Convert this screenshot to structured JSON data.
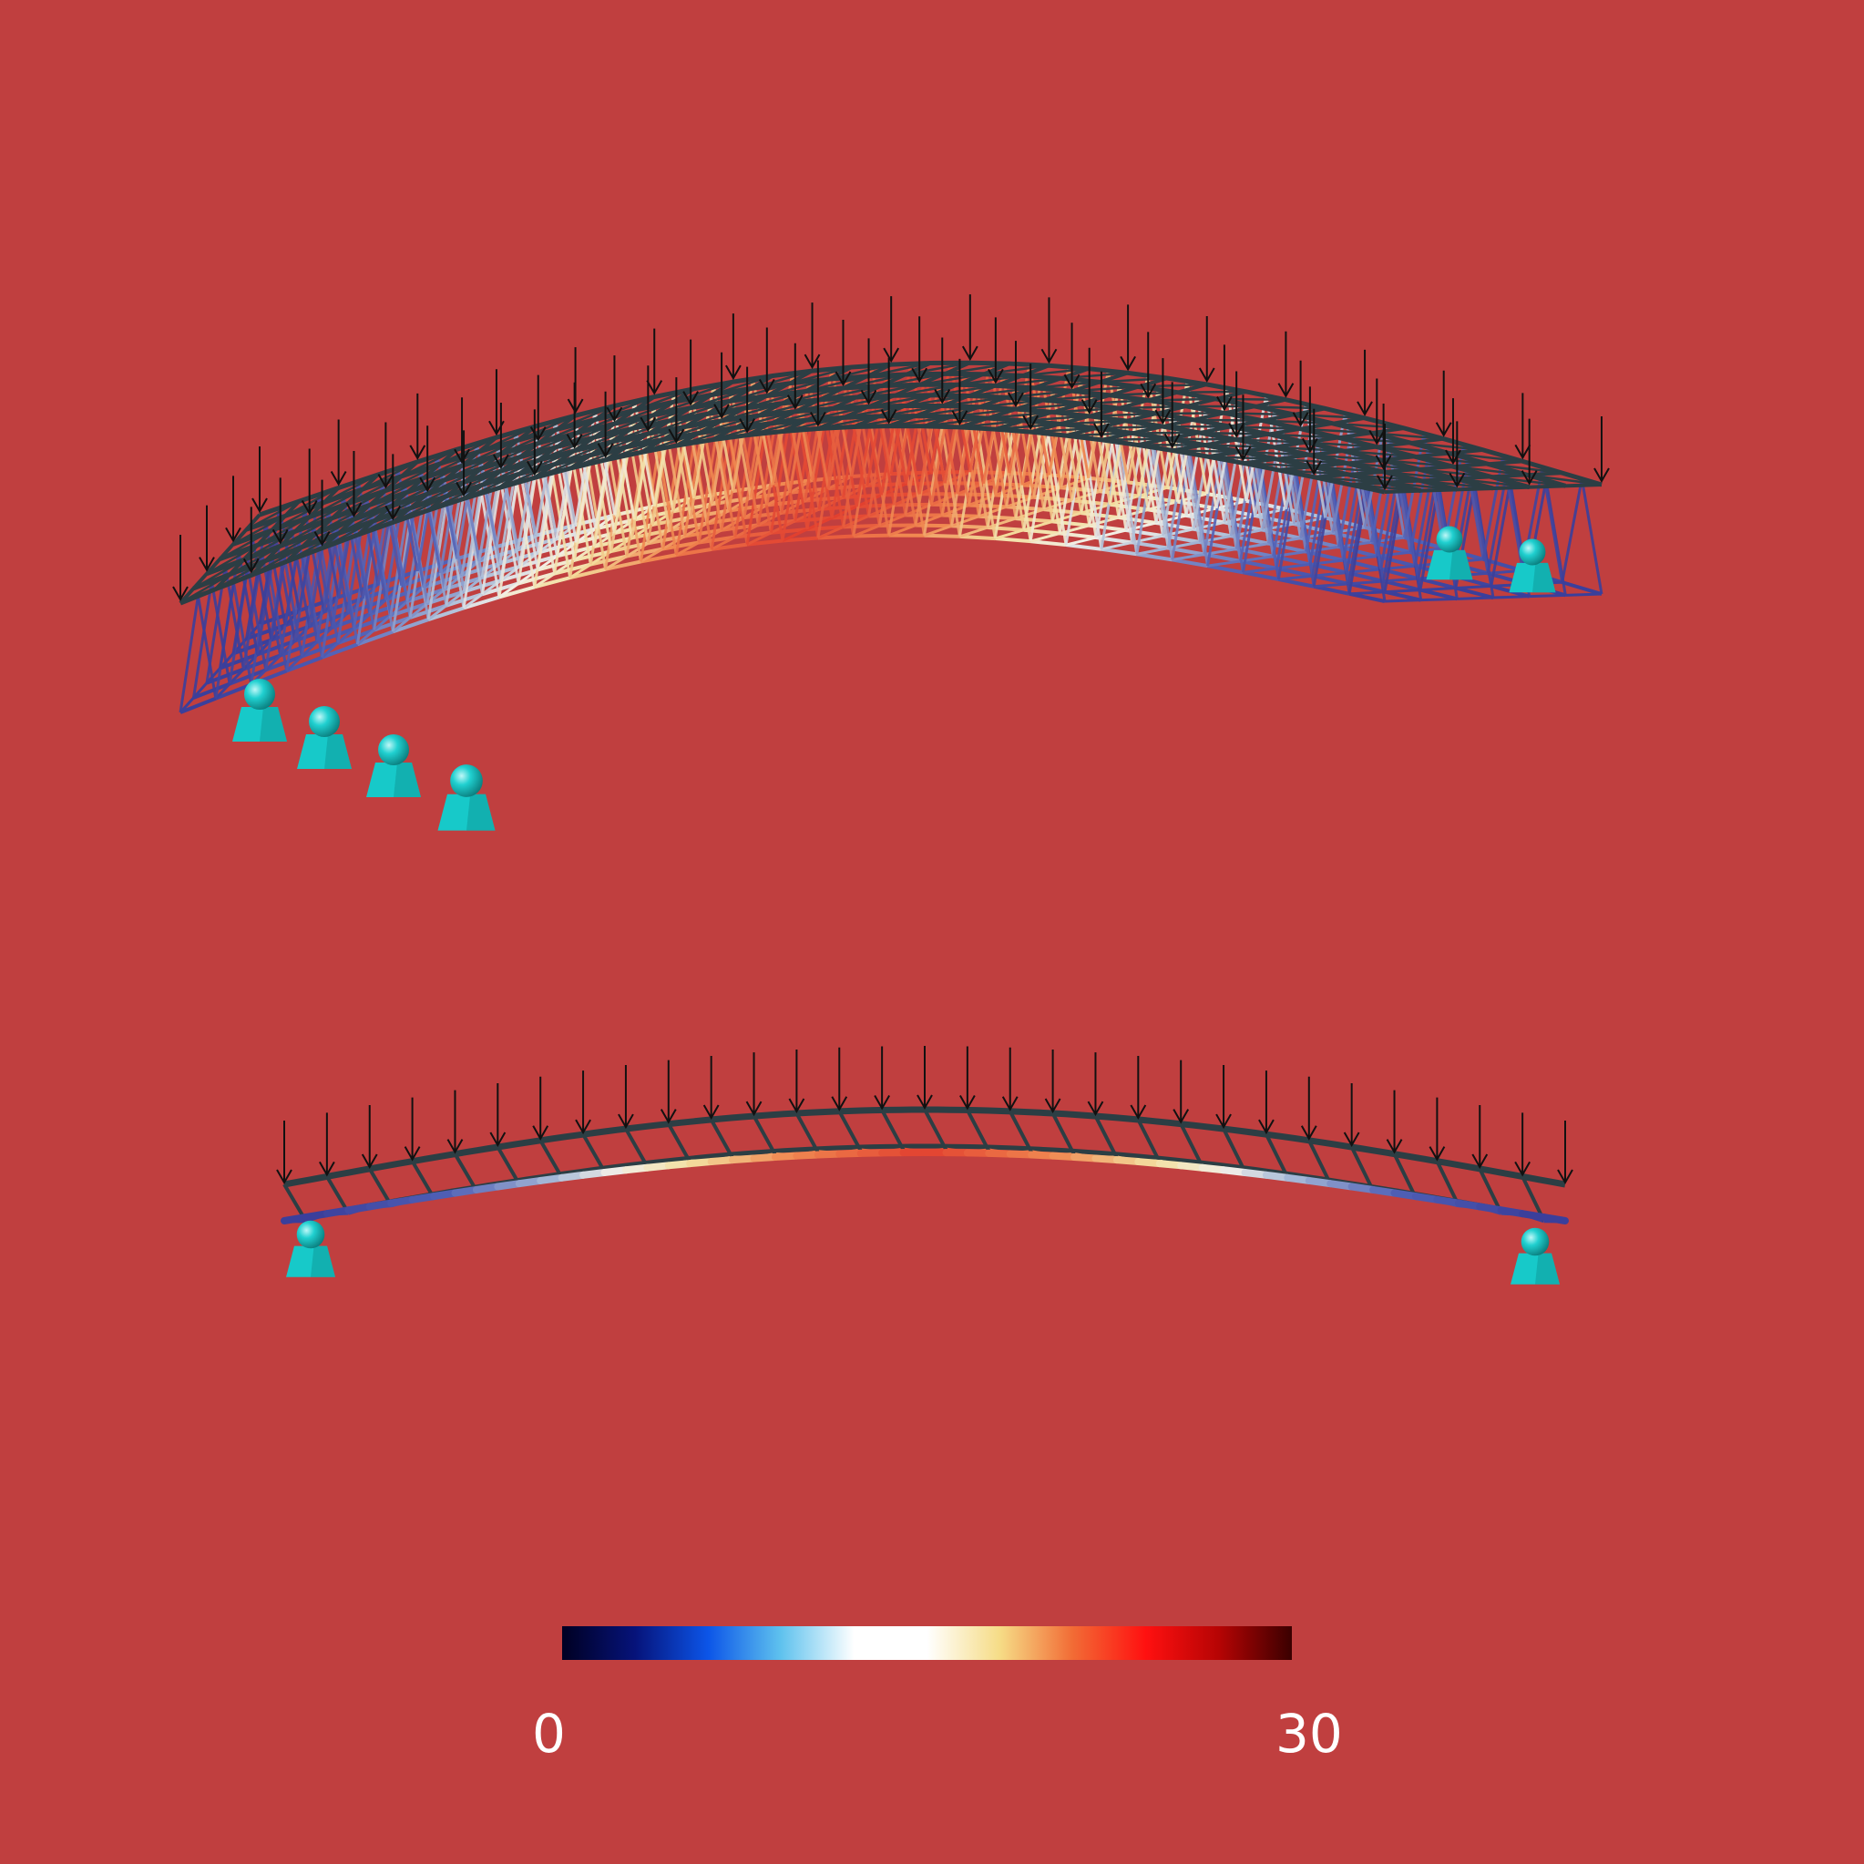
{
  "background_color": "#c03f3f",
  "colorbar": {
    "min_label": "0",
    "max_label": "30",
    "colormap": [
      "#000022",
      "#06137a",
      "#0c55e8",
      "#5fc2ee",
      "#ffffff",
      "#ffffff",
      "#f6dc86",
      "#f26b35",
      "#ff1010",
      "#b60404",
      "#3a0000"
    ]
  },
  "colors": {
    "support": "#17c9c9",
    "support_dark": "#0e9a9a",
    "truss_dark": "#2c3e44",
    "load_arrow": "#111111",
    "low_stress": "#3b3f9b",
    "mid_stress": "#f3dfa0",
    "high_stress": "#e2402f"
  },
  "views": {
    "perspective": {
      "name": "perspective-view"
    },
    "elevation": {
      "name": "elevation-view"
    }
  }
}
